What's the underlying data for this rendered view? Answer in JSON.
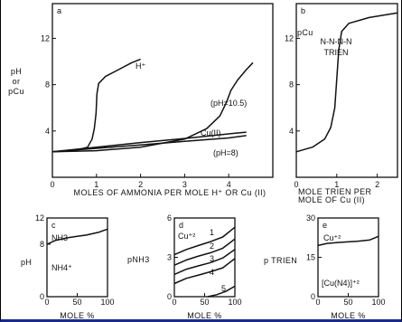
{
  "chart_data": [
    {
      "id": "a",
      "type": "line",
      "panel_label": "a",
      "xlabel": "MOLES OF AMMONIA PER MOLE H⁺ OR Cu (II)",
      "ylabel": "pH or pCu",
      "xlim": [
        0,
        5
      ],
      "ylim": [
        0,
        15
      ],
      "xticks": [
        0,
        1,
        2,
        3,
        4
      ],
      "yticks": [
        4,
        8,
        12
      ],
      "series": [
        {
          "name": "H⁺",
          "points": [
            [
              0,
              2.2
            ],
            [
              0.5,
              2.3
            ],
            [
              0.8,
              2.6
            ],
            [
              0.9,
              3.3
            ],
            [
              0.95,
              4.2
            ],
            [
              0.99,
              5.5
            ],
            [
              1.01,
              7.2
            ],
            [
              1.05,
              8.1
            ],
            [
              1.2,
              8.7
            ],
            [
              1.5,
              9.3
            ],
            [
              1.8,
              9.9
            ],
            [
              2.0,
              10.2
            ]
          ]
        },
        {
          "name": "(pH=10.5)",
          "points": [
            [
              0,
              2.2
            ],
            [
              1.0,
              2.3
            ],
            [
              2.0,
              2.6
            ],
            [
              3.0,
              3.3
            ],
            [
              3.5,
              4.2
            ],
            [
              3.8,
              5.3
            ],
            [
              3.95,
              6.5
            ],
            [
              4.05,
              7.5
            ],
            [
              4.2,
              8.4
            ],
            [
              4.4,
              9.3
            ],
            [
              4.55,
              9.9
            ]
          ]
        },
        {
          "name": "Cu(II)",
          "points": [
            [
              0,
              2.2
            ],
            [
              1,
              2.5
            ],
            [
              2,
              2.8
            ],
            [
              3,
              3.1
            ],
            [
              4,
              3.4
            ],
            [
              4.4,
              3.6
            ]
          ]
        },
        {
          "name": "(pH=8)",
          "points": [
            [
              0,
              2.2
            ],
            [
              1,
              2.6
            ],
            [
              2,
              3.0
            ],
            [
              3,
              3.35
            ],
            [
              4,
              3.75
            ],
            [
              4.4,
              3.9
            ]
          ]
        }
      ],
      "annotations": [
        "H⁺",
        "(pH=10.5)",
        "Cu(II)",
        "(pH=8)"
      ]
    },
    {
      "id": "b",
      "type": "line",
      "panel_label": "b",
      "xlabel": "MOLE TRIEN PER MOLE OF Cu (II)",
      "ylabel": "pCu",
      "xlim": [
        0,
        2.5
      ],
      "ylim": [
        0,
        15
      ],
      "xticks": [
        0,
        1,
        2
      ],
      "yticks": [
        4,
        8,
        12
      ],
      "series": [
        {
          "name": "N-N-N-N TRIEN",
          "points": [
            [
              0,
              2.2
            ],
            [
              0.4,
              2.6
            ],
            [
              0.7,
              3.3
            ],
            [
              0.85,
              4.3
            ],
            [
              0.95,
              6.0
            ],
            [
              1.0,
              8.5
            ],
            [
              1.05,
              11.0
            ],
            [
              1.12,
              12.6
            ],
            [
              1.3,
              13.3
            ],
            [
              1.8,
              13.8
            ],
            [
              2.5,
              14.2
            ]
          ]
        }
      ],
      "annotations": [
        "N-N-N-N",
        "TRIEN"
      ]
    },
    {
      "id": "c",
      "type": "line",
      "panel_label": "c",
      "xlabel": "MOLE %",
      "ylabel": "pH",
      "xlim": [
        0,
        100
      ],
      "ylim": [
        0,
        12
      ],
      "xticks": [
        0,
        50,
        100
      ],
      "yticks": [
        0,
        8,
        12
      ],
      "series": [
        {
          "name": "NH3 / NH4+",
          "points": [
            [
              0,
              8.0
            ],
            [
              15,
              8.6
            ],
            [
              35,
              9.0
            ],
            [
              50,
              9.2
            ],
            [
              65,
              9.4
            ],
            [
              85,
              9.8
            ],
            [
              100,
              10.3
            ]
          ]
        }
      ],
      "annotations": [
        "NH3",
        "NH4⁺"
      ]
    },
    {
      "id": "d",
      "type": "line",
      "panel_label": "d",
      "xlabel": "MOLE %",
      "ylabel": "pNH3",
      "xlim": [
        0,
        100
      ],
      "ylim": [
        0,
        6
      ],
      "xticks": [
        0,
        50,
        100
      ],
      "yticks": [
        0,
        3,
        6
      ],
      "series": [
        {
          "name": "1",
          "points": [
            [
              0,
              3.2
            ],
            [
              20,
              3.6
            ],
            [
              40,
              3.9
            ],
            [
              60,
              4.2
            ],
            [
              80,
              4.55
            ],
            [
              100,
              5.3
            ]
          ]
        },
        {
          "name": "2",
          "points": [
            [
              0,
              2.4
            ],
            [
              20,
              2.8
            ],
            [
              40,
              3.1
            ],
            [
              60,
              3.35
            ],
            [
              80,
              3.7
            ],
            [
              100,
              4.4
            ]
          ]
        },
        {
          "name": "3",
          "points": [
            [
              0,
              1.7
            ],
            [
              20,
              2.1
            ],
            [
              40,
              2.35
            ],
            [
              60,
              2.6
            ],
            [
              80,
              2.95
            ],
            [
              100,
              3.6
            ]
          ]
        },
        {
          "name": "4",
          "points": [
            [
              0,
              1.0
            ],
            [
              20,
              1.4
            ],
            [
              40,
              1.65
            ],
            [
              60,
              1.9
            ],
            [
              80,
              2.2
            ],
            [
              100,
              2.9
            ]
          ]
        },
        {
          "name": "5",
          "points": [
            [
              55,
              0
            ],
            [
              70,
              0.15
            ],
            [
              85,
              0.4
            ],
            [
              100,
              0.8
            ]
          ]
        }
      ],
      "annotations": [
        "Cu⁺²",
        "1",
        "2",
        "3",
        "4",
        "5"
      ]
    },
    {
      "id": "e",
      "type": "line",
      "panel_label": "e",
      "xlabel": "MOLE %",
      "ylabel": "p TRIEN",
      "xlim": [
        0,
        100
      ],
      "ylim": [
        0,
        30
      ],
      "xticks": [
        0,
        50,
        100
      ],
      "yticks": [
        0,
        15,
        30
      ],
      "series": [
        {
          "name": "Cu+2 / [Cu(N4)]+2",
          "points": [
            [
              0,
              19.5
            ],
            [
              15,
              20.3
            ],
            [
              35,
              20.7
            ],
            [
              50,
              20.9
            ],
            [
              65,
              21.1
            ],
            [
              85,
              21.6
            ],
            [
              100,
              23.0
            ]
          ]
        }
      ],
      "annotations": [
        "Cu⁺²",
        "[Cu(N4)]⁺²"
      ]
    }
  ]
}
